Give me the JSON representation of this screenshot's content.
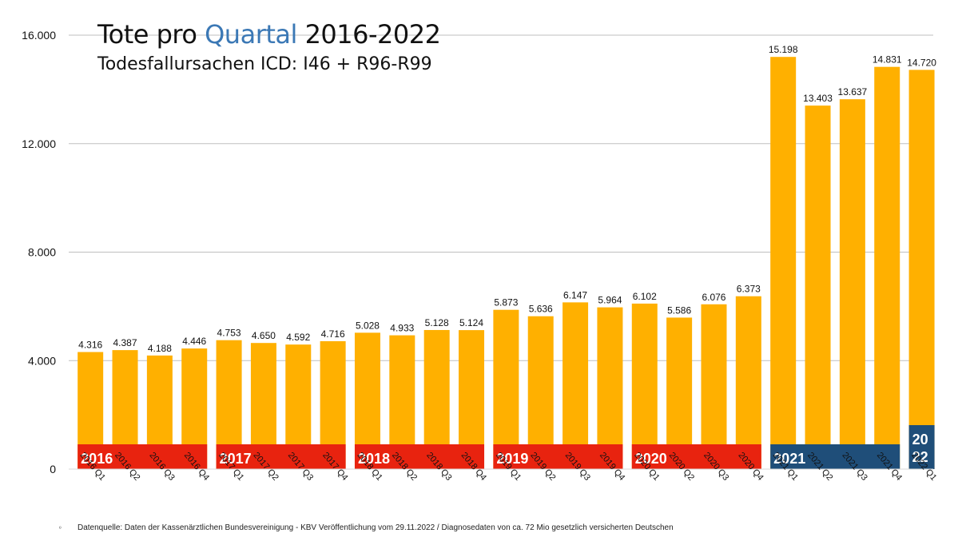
{
  "title": {
    "part1": "Tote pro ",
    "accent": "Quartal",
    "part2": " 2016-2022",
    "subtitle": "Todesfallursachen ICD: I46 + R96-R99"
  },
  "footnote": "Datenquelle: Daten der Kassenärztlichen Bundesvereinigung - KBV Veröffentlichung vom 29.11.2022 / Diagnosedaten von ca. 72 Mio gesetzlich versicherten Deutschen",
  "footnote_mark": "º",
  "colors": {
    "bar": "#FFB000",
    "year_red": "#E8230F",
    "year_blue": "#1F4E79",
    "grid": "#bfbfbf",
    "text": "#111111"
  },
  "chart_data": {
    "type": "bar",
    "categories": [
      "2016 Q1",
      "2016 Q2",
      "2016 Q3",
      "2016 Q4",
      "2017 Q1",
      "2017 Q2",
      "2017 Q3",
      "2017 Q4",
      "2018 Q1",
      "2018 Q2",
      "2018 Q3",
      "2018 Q4",
      "2019 Q1",
      "2019 Q2",
      "2019 Q3",
      "2019 Q4",
      "2020 Q1",
      "2020 Q2",
      "2020 Q3",
      "2020 Q4",
      "2021 Q1",
      "2021 Q2",
      "2021 Q3",
      "2021 Q4",
      "2022 Q1"
    ],
    "values": [
      4316,
      4387,
      4188,
      4446,
      4753,
      4650,
      4592,
      4716,
      5028,
      4933,
      5128,
      5124,
      5873,
      5636,
      6147,
      5964,
      6102,
      5586,
      6076,
      6373,
      15198,
      13403,
      13637,
      14831,
      14720
    ],
    "value_labels": [
      "4.316",
      "4.387",
      "4.188",
      "4.446",
      "4.753",
      "4.650",
      "4.592",
      "4.716",
      "5.028",
      "4.933",
      "5.128",
      "5.124",
      "5.873",
      "5.636",
      "6.147",
      "5.964",
      "6.102",
      "5.586",
      "6.076",
      "6.373",
      "15.198",
      "13.403",
      "13.637",
      "14.831",
      "14.720"
    ],
    "ylim": [
      0,
      16000
    ],
    "yticks": [
      0,
      4000,
      8000,
      12000,
      16000
    ],
    "ytick_labels": [
      "0",
      "4.000",
      "8.000",
      "12.000",
      "16.000"
    ],
    "grid": true,
    "year_bands": [
      {
        "label": "2016",
        "first": 0,
        "last": 3,
        "color": "red"
      },
      {
        "label": "2017",
        "first": 4,
        "last": 7,
        "color": "red"
      },
      {
        "label": "2018",
        "first": 8,
        "last": 11,
        "color": "red"
      },
      {
        "label": "2019",
        "first": 12,
        "last": 15,
        "color": "red"
      },
      {
        "label": "2020",
        "first": 16,
        "last": 19,
        "color": "red"
      },
      {
        "label": "2021",
        "first": 20,
        "last": 23,
        "color": "blue"
      },
      {
        "label": "2022",
        "label_lines": [
          "20",
          "22"
        ],
        "first": 24,
        "last": 24,
        "color": "blue"
      }
    ]
  }
}
